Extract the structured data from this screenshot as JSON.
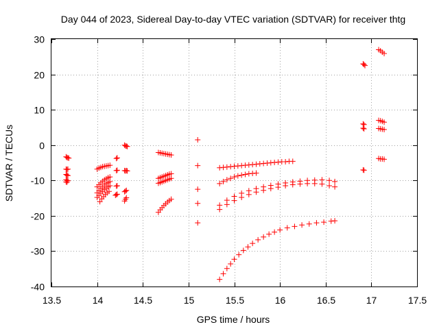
{
  "chart_data": {
    "type": "scatter",
    "title": "Day 044 of 2023, Sidereal Day-to-day VTEC variation (SDTVAR) for receiver thtg",
    "xlabel": "GPS time / hours",
    "ylabel": "SDTVAR / TECUs",
    "xlim": [
      13.5,
      17.5
    ],
    "ylim": [
      -40,
      30
    ],
    "xticks": [
      13.5,
      14,
      14.5,
      15,
      15.5,
      16,
      16.5,
      17,
      17.5
    ],
    "xtick_labels": [
      "13.5",
      "14",
      "14.5",
      "15",
      "15.5",
      "16",
      "16.5",
      "17",
      "17.5"
    ],
    "yticks": [
      -40,
      -30,
      -20,
      -10,
      0,
      10,
      20,
      30
    ],
    "ytick_labels": [
      "-40",
      "-30",
      "-20",
      "-10",
      "0",
      "10",
      "20",
      "30"
    ],
    "grid": true,
    "marker": "+",
    "color": "#ff0000",
    "series": [
      {
        "name": "pts-13.67",
        "x": [
          13.66,
          13.67,
          13.68,
          13.69,
          13.66,
          13.67,
          13.68,
          13.66,
          13.67,
          13.68,
          13.66,
          13.67,
          13.68,
          13.66,
          13.67
        ],
        "y": [
          -3.3,
          -3.5,
          -3.6,
          -3.7,
          -6.8,
          -6.9,
          -6.8,
          -8.3,
          -8.5,
          -8.6,
          -9.8,
          -10.0,
          -10.1,
          -10.4,
          -10.5
        ]
      },
      {
        "name": "pts-14.0a",
        "x": [
          14.0,
          14.02,
          14.04,
          14.06,
          14.08,
          14.1,
          14.12,
          14.14
        ],
        "y": [
          -6.8,
          -6.5,
          -6.3,
          -6.1,
          -6.0,
          -5.9,
          -5.8,
          -5.7
        ]
      },
      {
        "name": "pts-14.0b",
        "x": [
          14.0,
          14.02,
          14.04,
          14.06,
          14.08,
          14.1,
          14.12,
          14.14
        ],
        "y": [
          -11.8,
          -11.2,
          -10.7,
          -10.2,
          -9.8,
          -9.5,
          -9.2,
          -9.0
        ]
      },
      {
        "name": "pts-14.0c",
        "x": [
          14.0,
          14.02,
          14.04,
          14.06,
          14.08,
          14.1,
          14.12,
          14.14
        ],
        "y": [
          -13.5,
          -12.9,
          -12.3,
          -11.8,
          -11.3,
          -10.9,
          -10.6,
          -10.3
        ]
      },
      {
        "name": "pts-14.0d",
        "x": [
          14.0,
          14.02,
          14.04,
          14.06,
          14.08,
          14.1,
          14.12,
          14.14
        ],
        "y": [
          -14.8,
          -14.2,
          -13.6,
          -13.1,
          -12.6,
          -12.2,
          -11.8,
          -11.5
        ]
      },
      {
        "name": "pts-14.0e",
        "x": [
          14.03,
          14.05,
          14.07,
          14.09,
          14.11,
          14.13
        ],
        "y": [
          -16.0,
          -15.2,
          -14.6,
          -14.0,
          -13.5,
          -13.1
        ]
      },
      {
        "name": "pts-14.2",
        "x": [
          14.21,
          14.22,
          14.21,
          14.22,
          14.21,
          14.22
        ],
        "y": [
          -3.8,
          -3.6,
          -7.2,
          -7.1,
          -11.6,
          -11.5
        ]
      },
      {
        "name": "pts-14.2b",
        "x": [
          14.2,
          14.21,
          14.22
        ],
        "y": [
          -14.2,
          -14.0,
          -13.9
        ]
      },
      {
        "name": "pts-14.31",
        "x": [
          14.3,
          14.31,
          14.32,
          14.33,
          14.3,
          14.31,
          14.32,
          14.33,
          14.3,
          14.31,
          14.32,
          14.3,
          14.31,
          14.32
        ],
        "y": [
          0.0,
          -0.2,
          -0.3,
          -0.4,
          -7.2,
          -7.3,
          -7.2,
          -7.3,
          -13.2,
          -13.0,
          -12.8,
          -15.8,
          -15.3,
          -14.9
        ]
      },
      {
        "name": "pts-14.7a",
        "x": [
          14.67,
          14.69,
          14.71,
          14.73,
          14.75,
          14.77,
          14.79,
          14.81
        ],
        "y": [
          -2.1,
          -2.2,
          -2.3,
          -2.4,
          -2.5,
          -2.6,
          -2.7,
          -2.8
        ]
      },
      {
        "name": "pts-14.7b",
        "x": [
          14.67,
          14.69,
          14.71,
          14.73,
          14.75,
          14.77,
          14.79,
          14.81
        ],
        "y": [
          -9.4,
          -9.2,
          -9.0,
          -8.8,
          -8.6,
          -8.4,
          -8.2,
          -8.1
        ]
      },
      {
        "name": "pts-14.7c",
        "x": [
          14.67,
          14.69,
          14.71,
          14.73,
          14.75,
          14.77,
          14.79,
          14.81
        ],
        "y": [
          -10.8,
          -10.6,
          -10.4,
          -10.2,
          -10.0,
          -9.8,
          -9.6,
          -9.4
        ]
      },
      {
        "name": "pts-14.7d",
        "x": [
          14.67,
          14.69,
          14.71,
          14.73,
          14.75,
          14.77,
          14.79,
          14.81
        ],
        "y": [
          -19.0,
          -18.3,
          -17.7,
          -17.1,
          -16.6,
          -16.1,
          -15.7,
          -15.3
        ]
      },
      {
        "name": "pts-15.1",
        "x": [
          15.1,
          15.1,
          15.1,
          15.1,
          15.1
        ],
        "y": [
          1.5,
          -5.8,
          -12.5,
          -16.5,
          -22.0
        ]
      },
      {
        "name": "pts-arc-top",
        "x": [
          15.34,
          15.38,
          15.42,
          15.46,
          15.5,
          15.54,
          15.58,
          15.62,
          15.66,
          15.7,
          15.74,
          15.78,
          15.82,
          15.86,
          15.9,
          15.94,
          15.98,
          16.02,
          16.06,
          16.1,
          16.14
        ],
        "y": [
          -6.4,
          -6.3,
          -6.2,
          -6.1,
          -6.0,
          -5.9,
          -5.8,
          -5.7,
          -5.6,
          -5.5,
          -5.4,
          -5.3,
          -5.2,
          -5.1,
          -5.0,
          -4.9,
          -4.8,
          -4.7,
          -4.7,
          -4.6,
          -4.6
        ]
      },
      {
        "name": "pts-arc-2",
        "x": [
          15.34,
          15.38,
          15.42,
          15.46,
          15.5,
          15.54,
          15.58,
          15.62,
          15.66,
          15.7,
          15.74
        ],
        "y": [
          -10.9,
          -10.3,
          -9.8,
          -9.4,
          -9.0,
          -8.7,
          -8.5,
          -8.3,
          -8.1,
          -8.0,
          -7.9
        ]
      },
      {
        "name": "pts-arc-3",
        "x": [
          15.34,
          15.42,
          15.5,
          15.58,
          15.66,
          15.74,
          15.82,
          15.9,
          15.98,
          16.06,
          16.14,
          16.22,
          16.3,
          16.38,
          16.46,
          16.54,
          16.6
        ],
        "y": [
          -17.0,
          -15.6,
          -14.5,
          -13.6,
          -12.9,
          -12.3,
          -11.8,
          -11.4,
          -11.0,
          -10.7,
          -10.4,
          -10.2,
          -10.0,
          -9.9,
          -9.8,
          -10.0,
          -10.3
        ]
      },
      {
        "name": "pts-arc-4",
        "x": [
          15.34,
          15.42,
          15.5,
          15.58,
          15.66,
          15.74,
          15.82,
          15.9,
          15.98,
          16.06,
          16.14,
          16.22,
          16.3,
          16.38,
          16.46,
          16.54,
          16.6
        ],
        "y": [
          -18.2,
          -16.8,
          -15.7,
          -14.8,
          -14.0,
          -13.3,
          -12.8,
          -12.3,
          -11.9,
          -11.5,
          -11.2,
          -11.0,
          -10.9,
          -10.9,
          -11.0,
          -11.5,
          -11.8
        ]
      },
      {
        "name": "pts-arc-bottom",
        "x": [
          15.34,
          15.38,
          15.42,
          15.46,
          15.5,
          15.55,
          15.6,
          15.65,
          15.7,
          15.76,
          15.82,
          15.88,
          15.94,
          16.0,
          16.08,
          16.16,
          16.24,
          16.32,
          16.4,
          16.48,
          16.56,
          16.6
        ],
        "y": [
          -38.0,
          -36.4,
          -34.9,
          -33.6,
          -32.3,
          -31.0,
          -29.8,
          -28.8,
          -27.8,
          -26.8,
          -26.0,
          -25.2,
          -24.6,
          -24.0,
          -23.4,
          -23.0,
          -22.6,
          -22.3,
          -22.0,
          -21.8,
          -21.5,
          -21.4
        ]
      },
      {
        "name": "pts-16.92",
        "x": [
          16.91,
          16.92,
          16.93,
          16.91,
          16.92,
          16.91,
          16.92,
          16.91,
          16.92
        ],
        "y": [
          23.0,
          22.8,
          22.5,
          6.0,
          5.8,
          4.8,
          4.6,
          -7.0,
          -7.1
        ]
      },
      {
        "name": "pts-17.1",
        "x": [
          17.08,
          17.1,
          17.12,
          17.14,
          17.08,
          17.1,
          17.12,
          17.14,
          17.08,
          17.1,
          17.12,
          17.14,
          17.08,
          17.1,
          17.12,
          17.14
        ],
        "y": [
          27.0,
          26.7,
          26.3,
          25.9,
          7.0,
          6.9,
          6.7,
          6.5,
          4.7,
          4.6,
          4.5,
          4.4,
          -3.8,
          -3.9,
          -3.9,
          -4.0
        ]
      }
    ]
  }
}
